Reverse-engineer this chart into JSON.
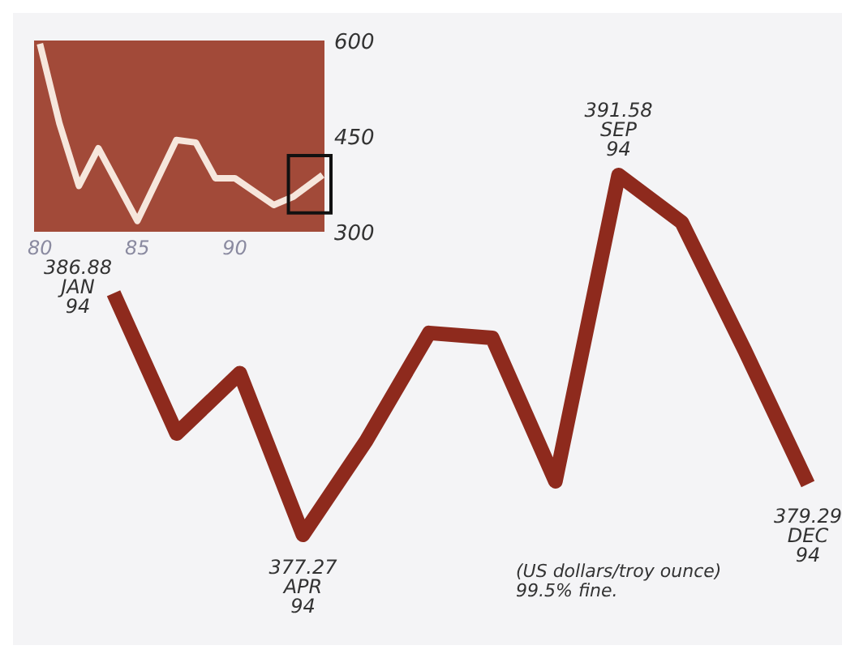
{
  "chart_data": [
    {
      "type": "line",
      "xlim": [
        79.7,
        94.6
      ],
      "ylim": [
        300,
        600
      ],
      "xticks": [
        80,
        85,
        90
      ],
      "yticks": [
        600,
        450,
        300
      ],
      "color": "#f6e6dc",
      "x": [
        80,
        81,
        82,
        83,
        85,
        87,
        88,
        89,
        90,
        92,
        93,
        94.5
      ],
      "values": [
        595,
        470,
        372,
        431,
        317,
        444,
        440,
        384,
        384,
        342,
        355,
        389
      ]
    },
    {
      "type": "line",
      "color": "#8e2a1d",
      "categories": [
        null,
        null,
        null,
        null,
        null,
        null,
        null,
        null,
        null,
        null,
        null,
        null
      ],
      "values": [
        386.88,
        381.3,
        383.7,
        377.27,
        381.0,
        385.3,
        385.1,
        379.4,
        391.58,
        389.7,
        384.6,
        379.29
      ],
      "value_labels": [
        "386.88\nJAN\n94",
        null,
        null,
        "377.27\nAPR\n94",
        null,
        null,
        null,
        null,
        "391.58\nSEP\n94",
        null,
        null,
        "379.29\nDEC\n94"
      ],
      "annotations": [
        "(US dollars/troy ounce)\n99.5% fine."
      ]
    }
  ]
}
